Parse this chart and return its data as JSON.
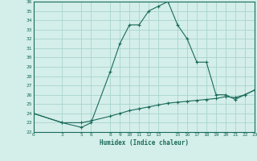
{
  "xlabel": "Humidex (Indice chaleur)",
  "background_color": "#d4eeea",
  "grid_color": "#a8d4ce",
  "line_color": "#1a6b5a",
  "xlim": [
    0,
    23
  ],
  "ylim": [
    22,
    36
  ],
  "xticks": [
    0,
    3,
    5,
    6,
    8,
    9,
    10,
    11,
    12,
    13,
    15,
    16,
    17,
    18,
    19,
    20,
    21,
    22,
    23
  ],
  "yticks": [
    22,
    23,
    24,
    25,
    26,
    27,
    28,
    29,
    30,
    31,
    32,
    33,
    34,
    35,
    36
  ],
  "series1_x": [
    0,
    3,
    5,
    6,
    8,
    9,
    10,
    11,
    12,
    13,
    14,
    15,
    16,
    17,
    18,
    19,
    20,
    21,
    22,
    23
  ],
  "series1_y": [
    24.0,
    23.0,
    22.5,
    23.0,
    28.5,
    31.5,
    33.5,
    33.5,
    35.0,
    35.5,
    36.0,
    33.5,
    32.0,
    29.5,
    29.5,
    26.0,
    26.0,
    25.5,
    26.0,
    26.5
  ],
  "series2_x": [
    0,
    3,
    5,
    6,
    8,
    9,
    10,
    11,
    12,
    13,
    14,
    15,
    16,
    17,
    18,
    19,
    20,
    21,
    22,
    23
  ],
  "series2_y": [
    24.0,
    23.0,
    23.0,
    23.2,
    23.7,
    24.0,
    24.3,
    24.5,
    24.7,
    24.9,
    25.1,
    25.2,
    25.3,
    25.4,
    25.5,
    25.6,
    25.8,
    25.7,
    26.0,
    26.5
  ]
}
